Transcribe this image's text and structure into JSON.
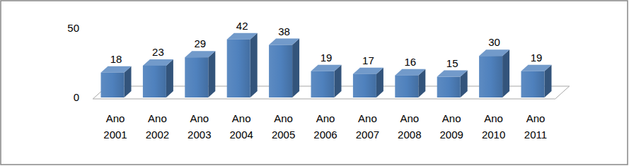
{
  "chart_data": {
    "type": "bar",
    "categories": [
      "Ano 2001",
      "Ano 2002",
      "Ano 2003",
      "Ano 2004",
      "Ano 2005",
      "Ano 2006",
      "Ano 2007",
      "Ano 2008",
      "Ano 2009",
      "Ano 2010",
      "Ano 2011"
    ],
    "values": [
      18,
      23,
      29,
      42,
      38,
      19,
      17,
      16,
      15,
      30,
      19
    ],
    "color": "#4f81bd",
    "ylim": [
      0,
      50
    ],
    "yticks": [
      0,
      50
    ],
    "grid": false,
    "data_labels": true
  }
}
